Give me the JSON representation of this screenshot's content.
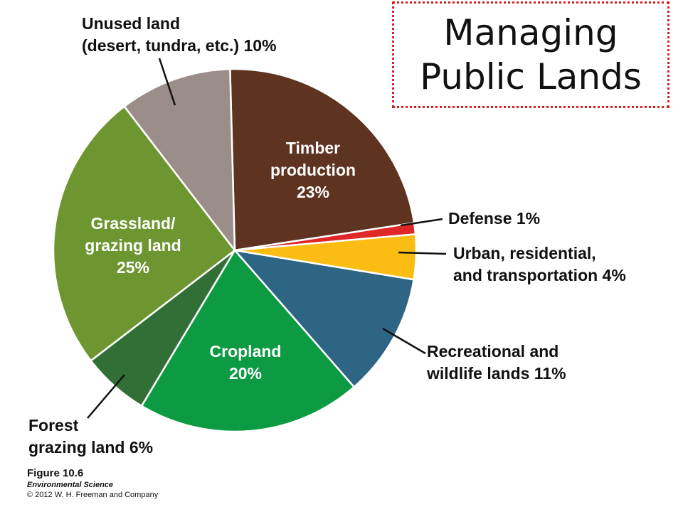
{
  "slide": {
    "title": "Managing\nPublic Lands"
  },
  "caption": {
    "figure": "Figure 10.6",
    "book": "Environmental Science",
    "copyright": "© 2012 W. H. Freeman and Company"
  },
  "labels": {
    "timber": "Timber\nproduction\n23%",
    "defense": "Defense 1%",
    "urban": "Urban, residential,\nand transportation 4%",
    "recreational": "Recreational and\nwildlife lands 11%",
    "cropland": "Cropland\n20%",
    "forest": "Forest\ngrazing land 6%",
    "grassland": "Grassland/\ngrazing land\n25%",
    "unused": "Unused land\n(desert, tundra, etc.) 10%"
  },
  "chart_data": {
    "type": "pie",
    "title": "Managing Public Lands",
    "slices": [
      {
        "name": "Timber production",
        "value": 23,
        "color": "#5e3320"
      },
      {
        "name": "Defense",
        "value": 1,
        "color": "#e02727"
      },
      {
        "name": "Urban, residential, and transportation",
        "value": 4,
        "color": "#fbbd13"
      },
      {
        "name": "Recreational and wildlife lands",
        "value": 11,
        "color": "#2e6484"
      },
      {
        "name": "Cropland",
        "value": 20,
        "color": "#0c9a42"
      },
      {
        "name": "Forest grazing land",
        "value": 6,
        "color": "#316f36"
      },
      {
        "name": "Grassland/grazing land",
        "value": 25,
        "color": "#6d9630"
      },
      {
        "name": "Unused land (desert, tundra, etc.)",
        "value": 10,
        "color": "#9b8d89"
      }
    ]
  }
}
